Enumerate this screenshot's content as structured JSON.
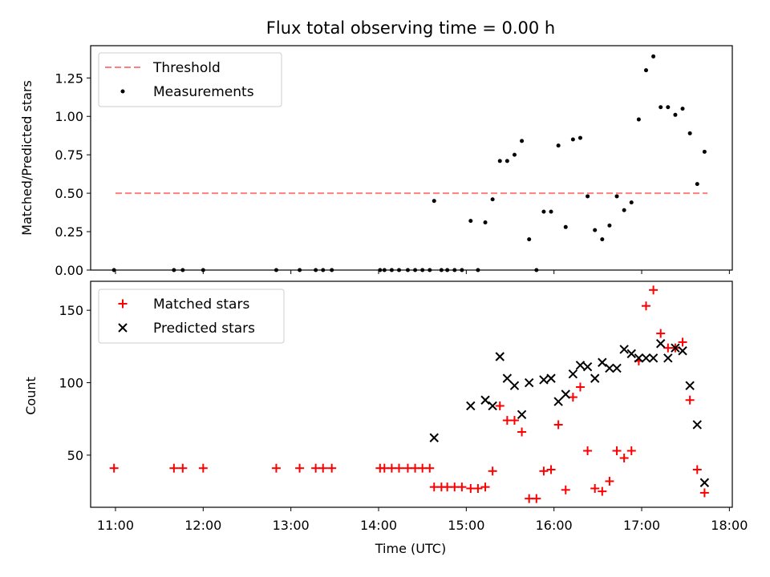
{
  "title": "Flux total observing time = 0.00 h",
  "colors": {
    "threshold": "#ff7f7f",
    "measure": "#000000",
    "matched": "#ff0000",
    "predicted": "#000000"
  },
  "chart_data": [
    {
      "type": "scatter",
      "ylabel": "Matched/Predicted stars",
      "xlabel": "",
      "x_ticks": [
        "11:00",
        "12:00",
        "13:00",
        "14:00",
        "15:00",
        "16:00",
        "17:00",
        "18:00"
      ],
      "y_ticks": [
        "0.00",
        "0.25",
        "0.50",
        "0.75",
        "1.00",
        "1.25"
      ],
      "xlim": [
        "10:43",
        "18:02"
      ],
      "ylim": [
        0,
        1.46
      ],
      "legend": {
        "position": "top-left",
        "threshold_label": "Threshold",
        "measurements_label": "Measurements"
      },
      "threshold": {
        "value": 0.5,
        "x_start": "11:00",
        "x_end": "17:45"
      },
      "series": [
        {
          "name": "Measurements",
          "points": [
            [
              "10:59",
              0.0
            ],
            [
              "11:40",
              0.0
            ],
            [
              "11:46",
              0.0
            ],
            [
              "12:00",
              0.0
            ],
            [
              "12:50",
              0.0
            ],
            [
              "13:06",
              0.0
            ],
            [
              "13:17",
              0.0
            ],
            [
              "13:22",
              0.0
            ],
            [
              "13:28",
              0.0
            ],
            [
              "14:01",
              0.0
            ],
            [
              "14:04",
              0.0
            ],
            [
              "14:09",
              0.0
            ],
            [
              "14:14",
              0.0
            ],
            [
              "14:20",
              0.0
            ],
            [
              "14:25",
              0.0
            ],
            [
              "14:30",
              0.0
            ],
            [
              "14:35",
              0.0
            ],
            [
              "14:38",
              0.45
            ],
            [
              "14:43",
              0.0
            ],
            [
              "14:47",
              0.0
            ],
            [
              "14:52",
              0.0
            ],
            [
              "14:57",
              0.0
            ],
            [
              "15:03",
              0.32
            ],
            [
              "15:08",
              0.0
            ],
            [
              "15:13",
              0.31
            ],
            [
              "15:18",
              0.46
            ],
            [
              "15:23",
              0.71
            ],
            [
              "15:28",
              0.71
            ],
            [
              "15:33",
              0.75
            ],
            [
              "15:38",
              0.84
            ],
            [
              "15:43",
              0.2
            ],
            [
              "15:48",
              0.0
            ],
            [
              "15:53",
              0.38
            ],
            [
              "15:58",
              0.38
            ],
            [
              "16:03",
              0.81
            ],
            [
              "16:08",
              0.28
            ],
            [
              "16:13",
              0.85
            ],
            [
              "16:18",
              0.86
            ],
            [
              "16:23",
              0.48
            ],
            [
              "16:28",
              0.26
            ],
            [
              "16:33",
              0.2
            ],
            [
              "16:38",
              0.29
            ],
            [
              "16:43",
              0.48
            ],
            [
              "16:48",
              0.39
            ],
            [
              "16:53",
              0.44
            ],
            [
              "16:58",
              0.98
            ],
            [
              "17:03",
              1.3
            ],
            [
              "17:08",
              1.39
            ],
            [
              "17:13",
              1.06
            ],
            [
              "17:18",
              1.06
            ],
            [
              "17:23",
              1.01
            ],
            [
              "17:28",
              1.05
            ],
            [
              "17:33",
              0.89
            ],
            [
              "17:38",
              0.56
            ],
            [
              "17:43",
              0.77
            ]
          ]
        }
      ]
    },
    {
      "type": "scatter",
      "ylabel": "Count",
      "xlabel": "Time (UTC)",
      "x_ticks": [
        "11:00",
        "12:00",
        "13:00",
        "14:00",
        "15:00",
        "16:00",
        "17:00",
        "18:00"
      ],
      "y_ticks": [
        "50",
        "100",
        "150"
      ],
      "xlim": [
        "10:43",
        "18:02"
      ],
      "ylim": [
        14,
        170
      ],
      "legend": {
        "position": "top-left",
        "matched_label": "Matched stars",
        "predicted_label": "Predicted stars"
      },
      "series": [
        {
          "name": "Matched stars",
          "points": [
            [
              "10:59",
              41
            ],
            [
              "11:40",
              41
            ],
            [
              "11:46",
              41
            ],
            [
              "12:00",
              41
            ],
            [
              "12:50",
              41
            ],
            [
              "13:06",
              41
            ],
            [
              "13:17",
              41
            ],
            [
              "13:22",
              41
            ],
            [
              "13:28",
              41
            ],
            [
              "14:01",
              41
            ],
            [
              "14:04",
              41
            ],
            [
              "14:09",
              41
            ],
            [
              "14:14",
              41
            ],
            [
              "14:20",
              41
            ],
            [
              "14:25",
              41
            ],
            [
              "14:30",
              41
            ],
            [
              "14:35",
              41
            ],
            [
              "14:38",
              28
            ],
            [
              "14:43",
              28
            ],
            [
              "14:47",
              28
            ],
            [
              "14:52",
              28
            ],
            [
              "14:57",
              28
            ],
            [
              "15:03",
              27
            ],
            [
              "15:08",
              27
            ],
            [
              "15:13",
              28
            ],
            [
              "15:18",
              39
            ],
            [
              "15:23",
              84
            ],
            [
              "15:28",
              74
            ],
            [
              "15:33",
              74
            ],
            [
              "15:38",
              66
            ],
            [
              "15:43",
              20
            ],
            [
              "15:48",
              20
            ],
            [
              "15:53",
              39
            ],
            [
              "15:58",
              40
            ],
            [
              "16:03",
              71
            ],
            [
              "16:08",
              26
            ],
            [
              "16:13",
              90
            ],
            [
              "16:18",
              97
            ],
            [
              "16:23",
              53
            ],
            [
              "16:28",
              27
            ],
            [
              "16:33",
              25
            ],
            [
              "16:38",
              32
            ],
            [
              "16:43",
              53
            ],
            [
              "16:48",
              48
            ],
            [
              "16:53",
              53
            ],
            [
              "16:58",
              115
            ],
            [
              "17:03",
              153
            ],
            [
              "17:08",
              164
            ],
            [
              "17:13",
              134
            ],
            [
              "17:18",
              124
            ],
            [
              "17:23",
              124
            ],
            [
              "17:28",
              128
            ],
            [
              "17:33",
              88
            ],
            [
              "17:38",
              40
            ],
            [
              "17:43",
              24
            ]
          ]
        },
        {
          "name": "Predicted stars",
          "points": [
            [
              "14:38",
              62
            ],
            [
              "15:03",
              84
            ],
            [
              "15:13",
              88
            ],
            [
              "15:18",
              84
            ],
            [
              "15:23",
              118
            ],
            [
              "15:28",
              103
            ],
            [
              "15:33",
              98
            ],
            [
              "15:38",
              78
            ],
            [
              "15:43",
              100
            ],
            [
              "15:53",
              102
            ],
            [
              "15:58",
              103
            ],
            [
              "16:03",
              87
            ],
            [
              "16:08",
              92
            ],
            [
              "16:13",
              106
            ],
            [
              "16:18",
              112
            ],
            [
              "16:23",
              111
            ],
            [
              "16:28",
              103
            ],
            [
              "16:33",
              114
            ],
            [
              "16:38",
              110
            ],
            [
              "16:43",
              110
            ],
            [
              "16:48",
              123
            ],
            [
              "16:53",
              120
            ],
            [
              "16:58",
              117
            ],
            [
              "17:03",
              117
            ],
            [
              "17:08",
              117
            ],
            [
              "17:13",
              127
            ],
            [
              "17:18",
              117
            ],
            [
              "17:23",
              124
            ],
            [
              "17:28",
              122
            ],
            [
              "17:33",
              98
            ],
            [
              "17:38",
              71
            ],
            [
              "17:43",
              31
            ]
          ]
        }
      ]
    }
  ]
}
